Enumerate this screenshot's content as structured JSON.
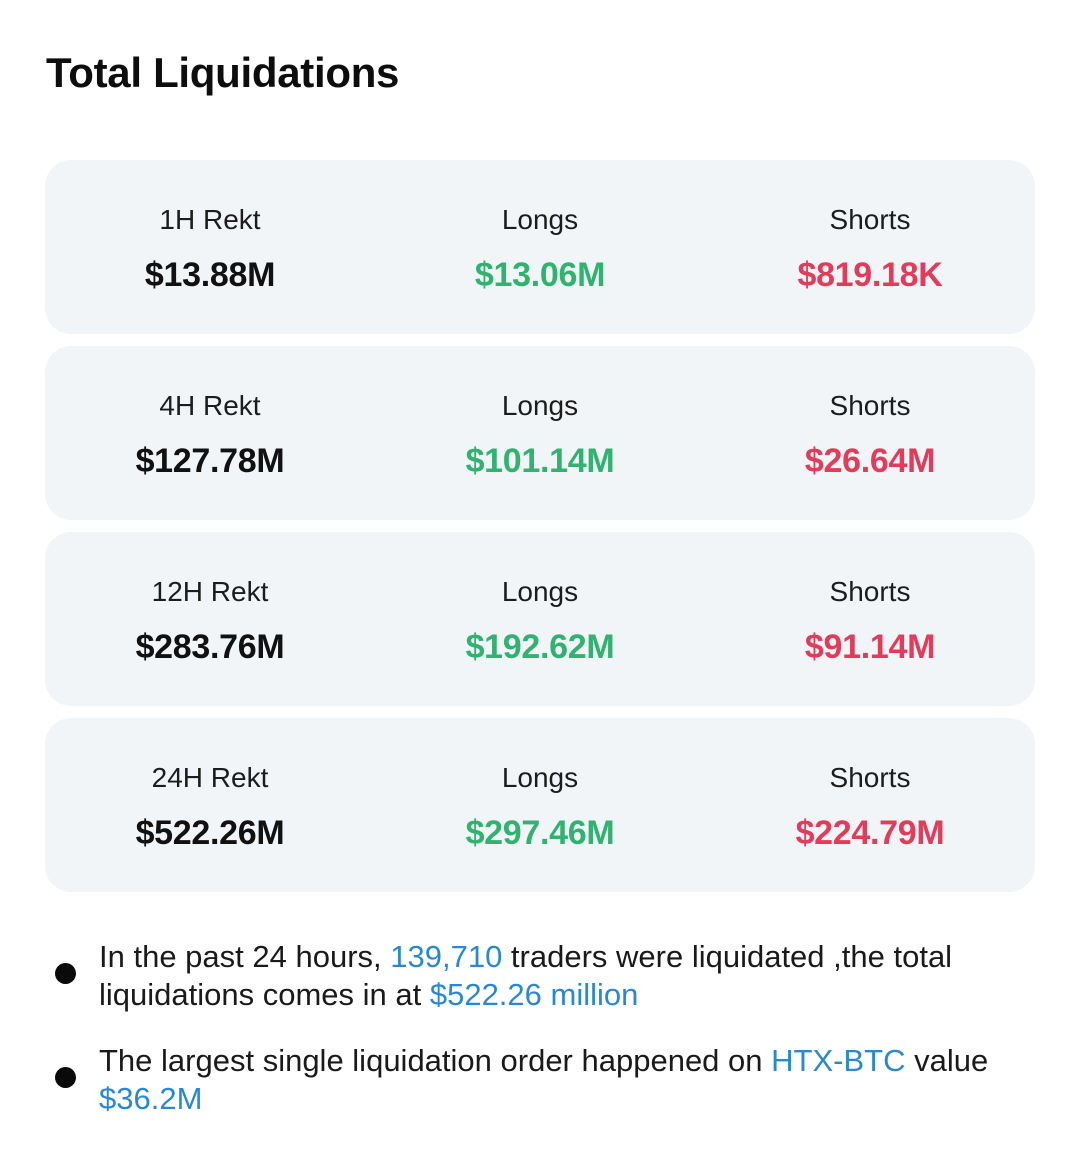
{
  "title": "Total Liquidations",
  "colors": {
    "longs": "#2fb36f",
    "shorts": "#e23c5a",
    "highlight": "#2789d6",
    "card_bg": "#f2f5f8"
  },
  "cards": [
    {
      "period_label": "1H Rekt",
      "total": "$13.88M",
      "longs_label": "Longs",
      "longs": "$13.06M",
      "shorts_label": "Shorts",
      "shorts": "$819.18K"
    },
    {
      "period_label": "4H Rekt",
      "total": "$127.78M",
      "longs_label": "Longs",
      "longs": "$101.14M",
      "shorts_label": "Shorts",
      "shorts": "$26.64M"
    },
    {
      "period_label": "12H Rekt",
      "total": "$283.76M",
      "longs_label": "Longs",
      "longs": "$192.62M",
      "shorts_label": "Shorts",
      "shorts": "$91.14M"
    },
    {
      "period_label": "24H Rekt",
      "total": "$522.26M",
      "longs_label": "Longs",
      "longs": "$297.46M",
      "shorts_label": "Shorts",
      "shorts": "$224.79M"
    }
  ],
  "notes": {
    "n1": {
      "part1": "In the past 24 hours, ",
      "traders": "139,710",
      "part2": " traders were liquidated ,the total liquidations comes in at ",
      "amount": "$522.26 million"
    },
    "n2": {
      "part1": "The largest single liquidation order happened on ",
      "exchange": "HTX-BTC",
      "part2": " value ",
      "value": "$36.2M"
    }
  }
}
